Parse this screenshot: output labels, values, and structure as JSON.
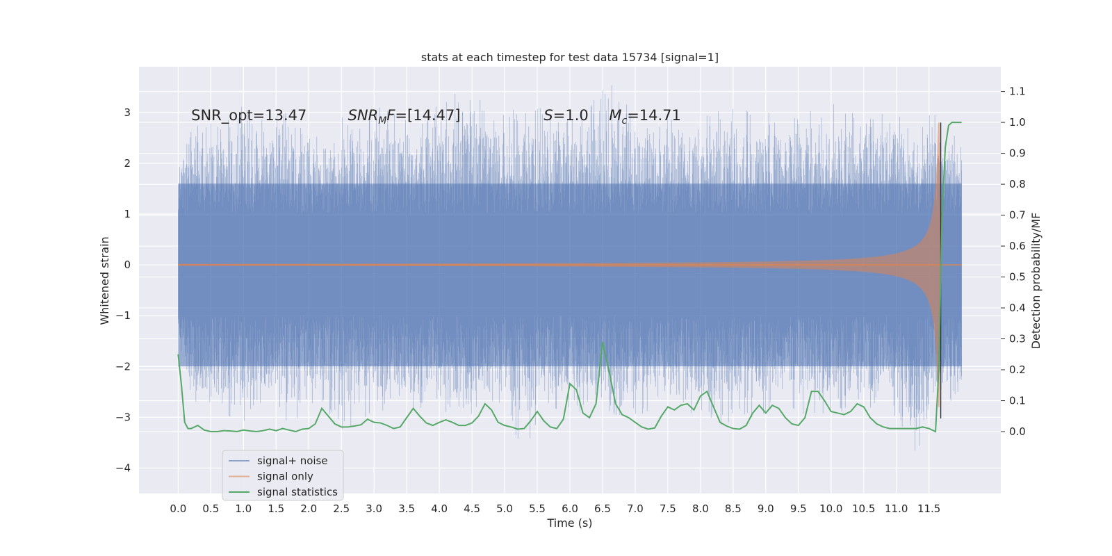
{
  "chart_data": {
    "type": "line",
    "title": "stats at each timestep for test data 15734 [signal=1]",
    "xlabel": "Time (s)",
    "ylabel_left": "Whitened strain",
    "ylabel_right": "Detection probability/MF",
    "xlim": [
      -0.6,
      12.6
    ],
    "ylim_left": [
      -4.5,
      3.9
    ],
    "ylim_right": [
      -0.2,
      1.18
    ],
    "grid": true,
    "legend_position": "lower-left",
    "x_ticks": [
      "0.0",
      "0.5",
      "1.0",
      "1.5",
      "2.0",
      "2.5",
      "3.0",
      "3.5",
      "4.0",
      "4.5",
      "5.0",
      "5.5",
      "6.0",
      "6.5",
      "7.0",
      "7.5",
      "8.0",
      "8.5",
      "9.0",
      "9.5",
      "10.0",
      "10.5",
      "11.0",
      "11.5"
    ],
    "y_ticks_left": [
      "−4",
      "−3",
      "−2",
      "−1",
      "0",
      "1",
      "2",
      "3"
    ],
    "y_ticks_right": [
      "0.0",
      "0.1",
      "0.2",
      "0.3",
      "0.4",
      "0.5",
      "0.6",
      "0.7",
      "0.8",
      "0.9",
      "1.0",
      "1.1"
    ],
    "annotations": [
      {
        "parts": [
          {
            "t": "SNR_opt=13.47",
            "style": "normal"
          }
        ],
        "x": 0.2,
        "y": 2.85
      },
      {
        "parts": [
          {
            "t": "SNR",
            "style": "italic"
          },
          {
            "t": "M",
            "style": "sub"
          },
          {
            "t": "F",
            "style": "italic"
          },
          {
            "t": "=[14.47]",
            "style": "normal"
          }
        ],
        "x": 2.6,
        "y": 2.85
      },
      {
        "parts": [
          {
            "t": "S",
            "style": "italic"
          },
          {
            "t": "=1.0",
            "style": "normal"
          }
        ],
        "x": 5.6,
        "y": 2.85
      },
      {
        "parts": [
          {
            "t": "M",
            "style": "italic"
          },
          {
            "t": "c",
            "style": "sub"
          },
          {
            "t": "=14.71",
            "style": "normal"
          }
        ],
        "x": 6.6,
        "y": 2.85
      }
    ],
    "series": [
      {
        "name": "signal+ noise",
        "color": "#4c72b0",
        "axis": "left",
        "kind": "noise",
        "x_range": [
          0.0,
          12.0
        ],
        "upper_envelope_x": [
          0.0,
          0.2,
          0.5,
          0.8,
          1.0,
          1.2,
          1.5,
          1.8,
          2.0,
          2.2,
          2.5,
          2.8,
          3.0,
          3.3,
          3.6,
          4.0,
          4.2,
          4.5,
          4.8,
          5.0,
          5.3,
          5.6,
          6.0,
          6.3,
          6.5,
          6.7,
          7.0,
          7.3,
          7.5,
          7.8,
          8.0,
          8.3,
          8.6,
          9.0,
          9.3,
          9.6,
          10.0,
          10.3,
          10.6,
          11.0,
          11.3,
          11.6,
          12.0
        ],
        "upper_envelope_y": [
          2.0,
          2.7,
          2.9,
          3.0,
          3.4,
          2.9,
          3.2,
          2.8,
          3.0,
          2.7,
          3.0,
          2.9,
          3.2,
          3.0,
          2.8,
          3.2,
          3.4,
          3.5,
          3.0,
          3.3,
          3.0,
          3.2,
          3.0,
          3.4,
          3.6,
          3.6,
          3.1,
          3.0,
          3.0,
          2.8,
          3.0,
          3.3,
          3.0,
          3.2,
          2.9,
          3.0,
          3.2,
          3.0,
          3.0,
          3.2,
          2.9,
          3.1,
          2.5
        ],
        "lower_envelope_x": [
          0.0,
          0.2,
          0.5,
          0.8,
          1.0,
          1.2,
          1.5,
          1.8,
          2.0,
          2.2,
          2.5,
          2.8,
          3.0,
          3.3,
          3.6,
          4.0,
          4.2,
          4.5,
          4.8,
          5.0,
          5.3,
          5.6,
          6.0,
          6.3,
          6.5,
          6.7,
          7.0,
          7.3,
          7.5,
          7.8,
          8.0,
          8.3,
          8.6,
          9.0,
          9.3,
          9.6,
          10.0,
          10.3,
          10.6,
          11.0,
          11.3,
          11.6,
          12.0
        ],
        "lower_envelope_y": [
          -1.3,
          -3.0,
          -2.9,
          -3.0,
          -3.1,
          -2.8,
          -3.0,
          -3.2,
          -2.8,
          -2.7,
          -3.4,
          -3.0,
          -3.0,
          -2.8,
          -3.0,
          -2.8,
          -3.0,
          -3.0,
          -2.9,
          -3.0,
          -3.7,
          -3.0,
          -2.8,
          -3.0,
          -3.2,
          -3.0,
          -3.0,
          -2.9,
          -2.8,
          -3.0,
          -3.0,
          -3.3,
          -3.0,
          -3.0,
          -2.9,
          -3.0,
          -3.0,
          -2.8,
          -3.0,
          -3.0,
          -4.1,
          -3.0,
          -2.7
        ],
        "dense_band": [
          -2.0,
          1.6
        ]
      },
      {
        "name": "signal only",
        "color": "#dd8452",
        "axis": "left",
        "kind": "chirp",
        "x_range": [
          0.0,
          12.0
        ],
        "merger_time": 11.68,
        "peak_amplitude": 2.8
      },
      {
        "name": "signal statistics",
        "color": "#55a868",
        "axis": "right",
        "kind": "line",
        "x": [
          0.0,
          0.05,
          0.1,
          0.15,
          0.2,
          0.3,
          0.4,
          0.5,
          0.6,
          0.7,
          0.8,
          0.9,
          1.0,
          1.1,
          1.2,
          1.3,
          1.4,
          1.5,
          1.6,
          1.7,
          1.8,
          1.9,
          2.0,
          2.1,
          2.2,
          2.3,
          2.4,
          2.5,
          2.6,
          2.7,
          2.8,
          2.9,
          3.0,
          3.1,
          3.2,
          3.3,
          3.4,
          3.5,
          3.6,
          3.7,
          3.8,
          3.9,
          4.0,
          4.1,
          4.2,
          4.3,
          4.4,
          4.5,
          4.6,
          4.7,
          4.8,
          4.9,
          5.0,
          5.1,
          5.2,
          5.3,
          5.4,
          5.5,
          5.6,
          5.7,
          5.8,
          5.9,
          6.0,
          6.1,
          6.2,
          6.3,
          6.4,
          6.5,
          6.6,
          6.7,
          6.8,
          6.9,
          7.0,
          7.1,
          7.2,
          7.3,
          7.4,
          7.5,
          7.6,
          7.7,
          7.8,
          7.9,
          8.0,
          8.1,
          8.2,
          8.3,
          8.4,
          8.5,
          8.6,
          8.7,
          8.8,
          8.9,
          9.0,
          9.1,
          9.2,
          9.3,
          9.4,
          9.5,
          9.6,
          9.7,
          9.8,
          9.9,
          10.0,
          10.1,
          10.2,
          10.3,
          10.4,
          10.5,
          10.6,
          10.7,
          10.8,
          10.9,
          11.0,
          11.1,
          11.2,
          11.3,
          11.4,
          11.5,
          11.6,
          11.65,
          11.7,
          11.75,
          11.8,
          11.85,
          11.9,
          12.0
        ],
        "y": [
          0.25,
          0.15,
          0.03,
          0.01,
          0.01,
          0.02,
          0.005,
          0.0,
          0.0,
          0.003,
          0.002,
          0.0,
          0.005,
          0.002,
          0.0,
          0.003,
          0.008,
          0.003,
          0.01,
          0.005,
          0.0,
          0.008,
          0.01,
          0.025,
          0.075,
          0.05,
          0.025,
          0.015,
          0.015,
          0.018,
          0.022,
          0.04,
          0.03,
          0.028,
          0.02,
          0.01,
          0.015,
          0.045,
          0.075,
          0.05,
          0.028,
          0.02,
          0.03,
          0.038,
          0.03,
          0.02,
          0.02,
          0.028,
          0.05,
          0.09,
          0.07,
          0.03,
          0.02,
          0.015,
          0.008,
          0.01,
          0.035,
          0.065,
          0.035,
          0.015,
          0.01,
          0.04,
          0.155,
          0.135,
          0.06,
          0.045,
          0.09,
          0.29,
          0.195,
          0.09,
          0.055,
          0.045,
          0.03,
          0.015,
          0.008,
          0.012,
          0.05,
          0.08,
          0.07,
          0.085,
          0.09,
          0.07,
          0.115,
          0.13,
          0.08,
          0.03,
          0.018,
          0.01,
          0.008,
          0.02,
          0.06,
          0.085,
          0.06,
          0.085,
          0.075,
          0.045,
          0.025,
          0.02,
          0.045,
          0.13,
          0.13,
          0.1,
          0.065,
          0.06,
          0.055,
          0.065,
          0.09,
          0.08,
          0.045,
          0.025,
          0.015,
          0.01,
          0.01,
          0.01,
          0.01,
          0.01,
          0.015,
          0.01,
          0.0,
          0.2,
          0.7,
          0.92,
          0.99,
          1.0,
          1.0,
          1.0
        ]
      }
    ],
    "legend_entries": [
      "signal+ noise",
      "signal only",
      "signal statistics"
    ]
  }
}
